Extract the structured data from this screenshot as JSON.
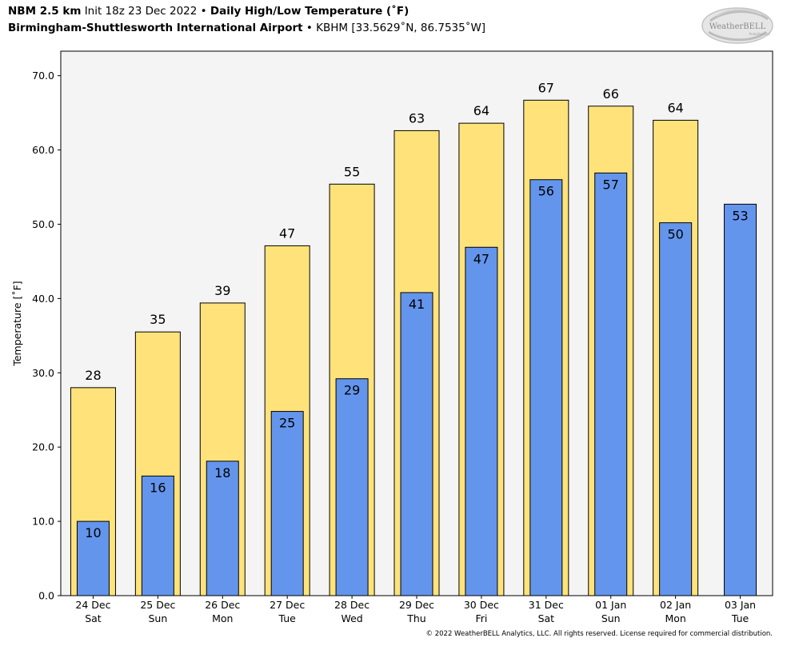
{
  "header": {
    "model": "NBM 2.5 km",
    "init": "Init 18z 23 Dec 2022",
    "bullet": "•",
    "product": "Daily High/Low Temperature (˚F)",
    "location": "Birmingham-Shuttlesworth International Airport",
    "station": "KBHM [33.5629˚N, 86.7535˚W]"
  },
  "logo": {
    "text": "WeatherBELL",
    "subtext": "Analytics LLC"
  },
  "copyright": "© 2022 WeatherBELL Analytics, LLC. All rights reserved. License required for commercial distribution.",
  "chart_data": {
    "type": "bar",
    "ylabel": "Temperature [˚F]",
    "ylim": [
      0,
      73.3
    ],
    "yticks": [
      0,
      10,
      20,
      30,
      40,
      50,
      60,
      70
    ],
    "ytick_labels": [
      "0.0",
      "10.0",
      "20.0",
      "30.0",
      "40.0",
      "50.0",
      "60.0",
      "70.0"
    ],
    "grid": false,
    "categories": [
      [
        "24 Dec",
        "Sat"
      ],
      [
        "25 Dec",
        "Sun"
      ],
      [
        "26 Dec",
        "Mon"
      ],
      [
        "27 Dec",
        "Tue"
      ],
      [
        "28 Dec",
        "Wed"
      ],
      [
        "29 Dec",
        "Thu"
      ],
      [
        "30 Dec",
        "Fri"
      ],
      [
        "31 Dec",
        "Sat"
      ],
      [
        "01 Jan",
        "Sun"
      ],
      [
        "02 Jan",
        "Mon"
      ],
      [
        "03 Jan",
        "Tue"
      ]
    ],
    "series": [
      {
        "role": "high",
        "color": "#ffe37a",
        "values": [
          28.0,
          35.5,
          39.4,
          47.1,
          55.4,
          62.6,
          63.6,
          66.7,
          65.9,
          64.0,
          null
        ],
        "labels": [
          "28",
          "35",
          "39",
          "47",
          "55",
          "63",
          "64",
          "67",
          "66",
          "64",
          null
        ]
      },
      {
        "role": "low",
        "color": "#6495ed",
        "values": [
          10.0,
          16.1,
          18.1,
          24.8,
          29.2,
          40.8,
          46.9,
          56.0,
          56.9,
          50.2,
          52.7
        ],
        "labels": [
          "10",
          "16",
          "18",
          "25",
          "29",
          "41",
          "47",
          "56",
          "57",
          "50",
          "53"
        ]
      }
    ],
    "background": "#f4f4f4"
  }
}
